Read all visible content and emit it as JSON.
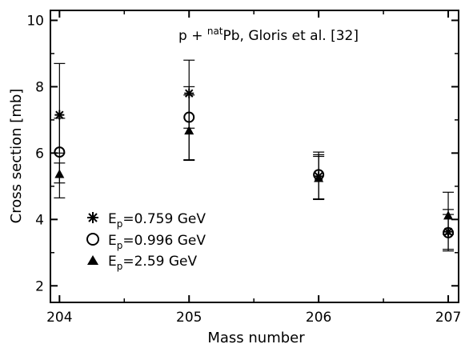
{
  "chart_data": {
    "type": "scatter",
    "title_parts": {
      "prefix": "p + ",
      "superscript": "nat",
      "suffix": "Pb, Gloris et al. [32]"
    },
    "xlabel": "Mass number",
    "ylabel": "Cross section [mb]",
    "xlim": [
      203.93,
      207.08
    ],
    "ylim": [
      1.5,
      10.3
    ],
    "xticks": [
      204,
      205,
      206,
      207
    ],
    "xtick_labels": [
      "204",
      "205",
      "206",
      "207"
    ],
    "yticks": [
      2,
      4,
      6,
      8,
      10
    ],
    "ytick_labels": [
      "2",
      "4",
      "6",
      "8",
      "10"
    ],
    "grid": false,
    "legend_position": "lower-left",
    "series": [
      {
        "name_parts": {
          "base": "E",
          "sub": "p",
          "rest": "=0.759 GeV"
        },
        "marker": "asterisk",
        "x": [
          204,
          205,
          206,
          207
        ],
        "y": [
          7.15,
          7.8,
          5.3,
          3.63
        ],
        "err_low": [
          6.0,
          6.75,
          4.62,
          3.1
        ],
        "err_high": [
          8.7,
          8.8,
          5.95,
          4.3
        ]
      },
      {
        "name_parts": {
          "base": "E",
          "sub": "p",
          "rest": "=0.996 GeV"
        },
        "marker": "circle",
        "x": [
          204,
          205,
          206,
          207
        ],
        "y": [
          6.03,
          7.08,
          5.35,
          3.6
        ],
        "err_low": [
          5.1,
          5.8,
          4.6,
          3.05
        ],
        "err_high": [
          7.05,
          8.0,
          6.03,
          4.15
        ]
      },
      {
        "name_parts": {
          "base": "E",
          "sub": "p",
          "rest": "=2.59 GeV"
        },
        "marker": "triangle",
        "x": [
          204,
          205,
          206,
          207
        ],
        "y": [
          5.37,
          6.68,
          5.25,
          4.12
        ],
        "err_low": [
          4.65,
          5.78,
          4.62,
          3.55
        ],
        "err_high": [
          5.7,
          7.75,
          5.9,
          4.82
        ]
      }
    ]
  }
}
